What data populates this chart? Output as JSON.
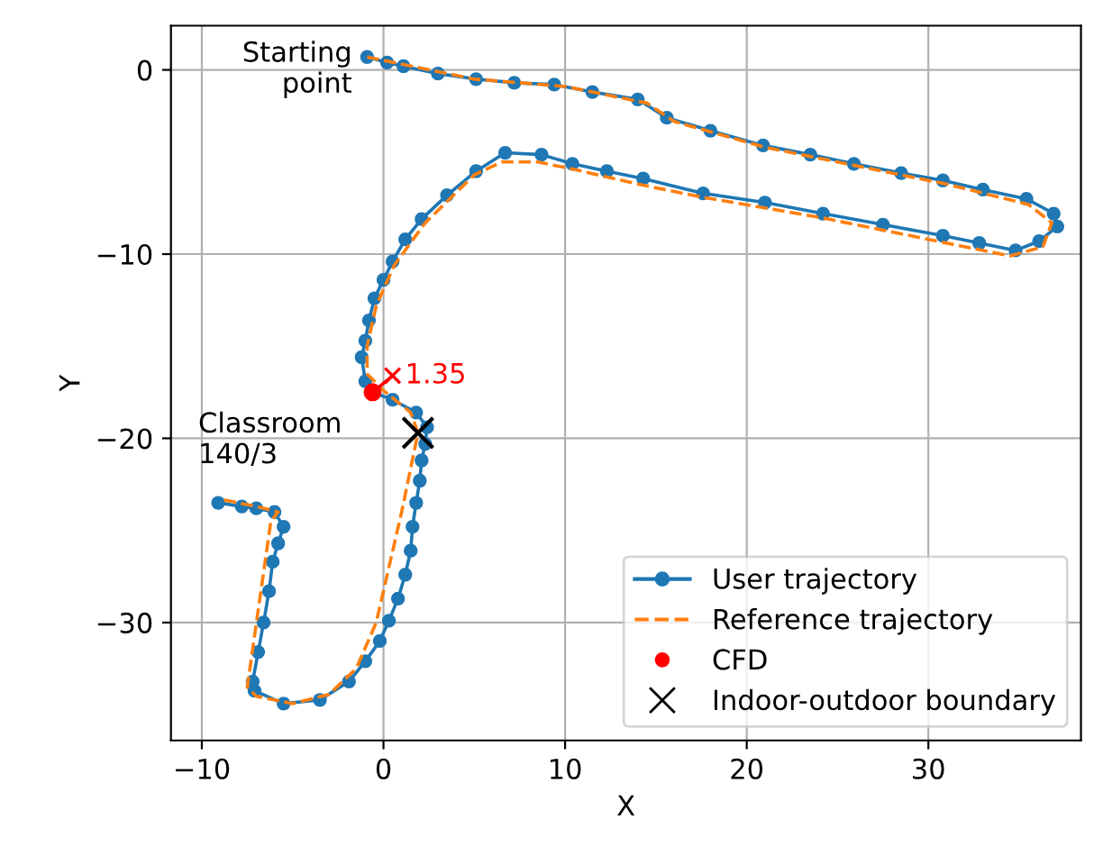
{
  "chart_data": {
    "type": "line",
    "xlabel": "X",
    "ylabel": "Y",
    "xlim": [
      -11.7,
      38.4
    ],
    "ylim": [
      -36.4,
      2.4
    ],
    "xticks": [
      -10,
      0,
      10,
      20,
      30
    ],
    "yticks": [
      -30,
      -20,
      -10,
      0
    ],
    "grid": true,
    "legend": "bottom right",
    "annotations": [
      {
        "text": "Starting\npoint",
        "x": -0.9,
        "y": 0.7
      },
      "Classroom\n140/3",
      {
        "text": "1.35",
        "x": 0.5,
        "y": -16.6
      }
    ],
    "series": [
      {
        "name": "User trajectory",
        "color": "#1f77b4",
        "marker": "circle",
        "line_style": "solid",
        "x": [
          -0.9,
          0.2,
          1.1,
          3.0,
          5.1,
          7.2,
          9.4,
          11.5,
          14.0,
          15.6,
          18.0,
          20.9,
          23.5,
          25.9,
          28.5,
          30.8,
          33.0,
          35.4,
          36.9,
          37.1,
          36.1,
          34.8,
          32.8,
          30.8,
          27.5,
          24.2,
          21.0,
          17.6,
          14.3,
          12.3,
          10.4,
          8.7,
          6.7,
          5.1,
          3.5,
          2.1,
          1.2,
          0.5,
          0.0,
          -0.5,
          -0.8,
          -1.0,
          -1.2,
          -1.0,
          -0.6,
          0.5,
          1.8,
          2.4,
          2.3,
          2.1,
          2.0,
          1.8,
          1.6,
          1.5,
          1.2,
          0.8,
          0.3,
          -0.2,
          -1.0,
          -1.9,
          -3.5,
          -5.5,
          -7.1,
          -7.2,
          -6.9,
          -6.6,
          -6.3,
          -6.1,
          -5.8,
          -5.5,
          -6.0,
          -7.0,
          -7.8,
          -9.1
        ],
        "values": [
          0.7,
          0.4,
          0.2,
          -0.2,
          -0.5,
          -0.7,
          -0.8,
          -1.2,
          -1.6,
          -2.6,
          -3.3,
          -4.1,
          -4.6,
          -5.1,
          -5.6,
          -6.0,
          -6.5,
          -7.0,
          -7.8,
          -8.5,
          -9.3,
          -9.8,
          -9.4,
          -9.0,
          -8.4,
          -7.8,
          -7.2,
          -6.7,
          -5.9,
          -5.5,
          -5.1,
          -4.6,
          -4.5,
          -5.5,
          -6.8,
          -8.1,
          -9.2,
          -10.4,
          -11.4,
          -12.4,
          -13.6,
          -14.7,
          -15.6,
          -16.9,
          -17.5,
          -17.9,
          -18.6,
          -19.4,
          -20.3,
          -21.2,
          -22.3,
          -23.5,
          -24.8,
          -26.1,
          -27.4,
          -28.7,
          -29.9,
          -31.0,
          -32.1,
          -33.2,
          -34.2,
          -34.4,
          -33.7,
          -33.2,
          -31.6,
          -30.0,
          -28.3,
          -26.7,
          -25.7,
          -24.8,
          -24.0,
          -23.8,
          -23.7,
          -23.5
        ]
      },
      {
        "name": "Reference trajectory",
        "color": "#ff7f0e",
        "marker": "none",
        "line_style": "dashed",
        "x": [
          -0.9,
          5.0,
          10.0,
          14.5,
          16.0,
          21.0,
          26.0,
          31.0,
          35.5,
          36.8,
          36.3,
          34.5,
          30.5,
          24.0,
          17.5,
          14.0,
          10.5,
          8.5,
          6.5,
          5.0,
          2.3,
          0.6,
          -0.4,
          -0.9,
          -0.9,
          0.0,
          1.5,
          1.9,
          1.0,
          -0.4,
          -1.5,
          -3.0,
          -5.0,
          -7.0,
          -7.5,
          -6.2,
          -5.8,
          -7.0,
          -9.0
        ],
        "values": [
          0.7,
          -0.5,
          -0.9,
          -1.8,
          -2.8,
          -4.2,
          -5.2,
          -6.2,
          -7.3,
          -8.3,
          -9.6,
          -10.1,
          -9.3,
          -8.0,
          -6.9,
          -6.2,
          -5.4,
          -5.0,
          -5.0,
          -5.7,
          -8.3,
          -10.6,
          -12.8,
          -15.0,
          -16.5,
          -17.4,
          -18.6,
          -19.7,
          -24.0,
          -30.0,
          -32.5,
          -33.9,
          -34.4,
          -34.0,
          -33.5,
          -24.5,
          -24.0,
          -23.7,
          -23.3
        ]
      },
      {
        "name": "CFD",
        "type": "scatter",
        "color": "#ff0000",
        "marker": "circle",
        "x": [
          -0.6
        ],
        "values": [
          -17.5
        ]
      },
      {
        "name": "Indoor-outdoor boundary",
        "type": "scatter",
        "color": "#000000",
        "marker": "cross",
        "x": [
          1.9
        ],
        "values": [
          -19.7
        ]
      },
      {
        "type": "line",
        "color": "#ff0000",
        "marker": "none",
        "line_style": "solid",
        "x": [
          -0.6,
          0.5
        ],
        "values": [
          -17.5,
          -16.6
        ]
      },
      {
        "type": "scatter",
        "color": "#ff0000",
        "marker": "cross",
        "x": [
          0.5
        ],
        "values": [
          -16.6
        ]
      }
    ]
  }
}
